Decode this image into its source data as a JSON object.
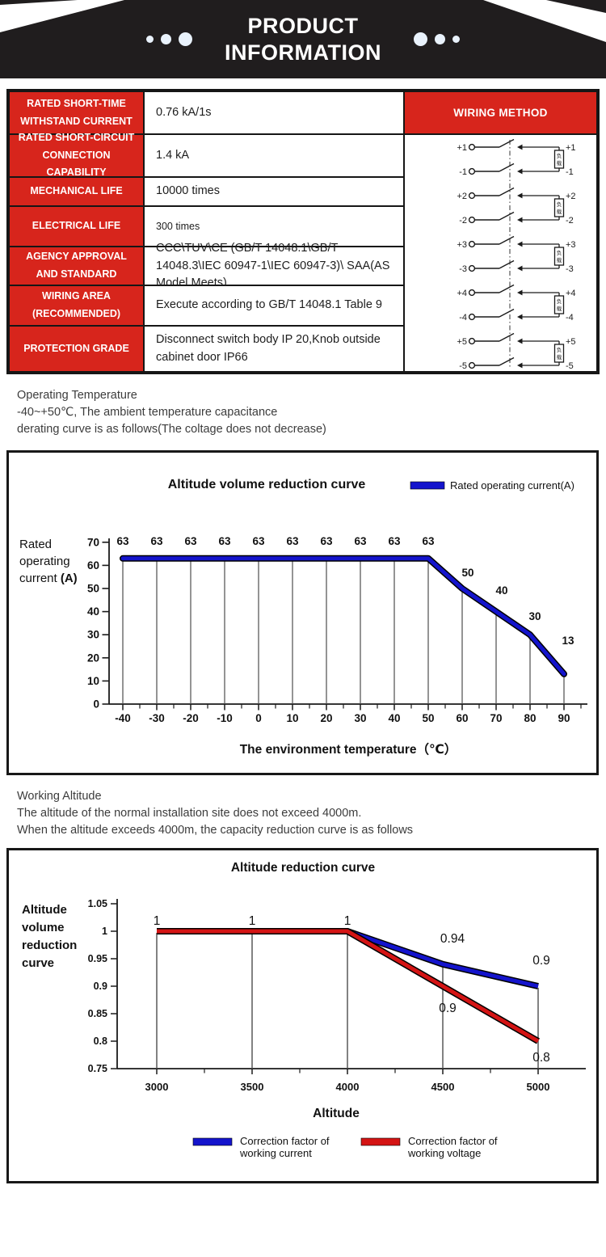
{
  "header": {
    "title": "PRODUCT INFORMATION",
    "title_lines": [
      "PRODUCT",
      "INFORMATION"
    ]
  },
  "spec_table": {
    "rows": [
      {
        "label_lines": [
          "RATED SHORT-TIME",
          "WITHSTAND CURRENT"
        ],
        "value": "0.76 kA/1s"
      },
      {
        "label_lines": [
          "RATED SHORT-CIRCUIT",
          "CONNECTION CAPABILITY"
        ],
        "value": "1.4 kA"
      },
      {
        "label_lines": [
          "MECHANICAL LIFE"
        ],
        "value": "10000 times"
      },
      {
        "label_lines": [
          "ELECTRICAL LIFE"
        ],
        "value": "300 times"
      },
      {
        "label_lines": [
          "AGENCY APPROVAL",
          "AND STANDARD"
        ],
        "value": "CCC\\TUV\\CE (GB/T 14048.1\\GB/T 14048.3\\IEC 60947-1\\IEC 60947-3)\\ SAA(AS Model Meets)"
      },
      {
        "label_lines": [
          "WIRING AREA",
          "(RECOMMENDED)"
        ],
        "value": "Execute according to GB/T 14048.1 Table 9"
      },
      {
        "label_lines": [
          "PROTECTION GRADE"
        ],
        "value": "Disconnect switch body IP 20,Knob outside cabinet door IP66"
      }
    ],
    "wiring": {
      "header": "WIRING METHOD",
      "groups": [
        {
          "plus": "+1",
          "minus": "-1"
        },
        {
          "plus": "+2",
          "minus": "-2"
        },
        {
          "plus": "+3",
          "minus": "-3"
        },
        {
          "plus": "+4",
          "minus": "-4"
        },
        {
          "plus": "+5",
          "minus": "-5"
        }
      ],
      "load_label": "负载"
    }
  },
  "temperature_note": {
    "lines": [
      "Operating Temperature",
      " -40~+50℃, The ambient temperature capacitance",
      "derating curve is as follows(The coltage does not decrease)"
    ]
  },
  "altitude_note": {
    "lines": [
      "Working Altitude",
      "The altitude of the normal installation site does not exceed 4000m.",
      "When the altitude exceeds 4000m, the capacity reduction curve is as follows"
    ]
  },
  "colors": {
    "accent_red": "#d7251c",
    "line_blue": "#1414cc",
    "line_red": "#d41414",
    "banner_black": "#201d1e"
  },
  "chart_data": [
    {
      "type": "line",
      "title": "Altitude volume reduction curve",
      "xlabel": "The environment temperature（℃）",
      "ylabel": "Rated operating current (A)",
      "ylabel_lines": [
        "Rated",
        "operating",
        "current (A)"
      ],
      "legend": [
        {
          "label": "Rated operating current(A)",
          "color": "#1414cc"
        }
      ],
      "legend_position": "top-right",
      "x": [
        -40,
        -30,
        -20,
        -10,
        0,
        10,
        20,
        30,
        40,
        50,
        60,
        70,
        80,
        90
      ],
      "series": [
        {
          "name": "Rated operating current(A)",
          "color": "#1414cc",
          "values": [
            63,
            63,
            63,
            63,
            63,
            63,
            63,
            63,
            63,
            63,
            50,
            40,
            30,
            13
          ],
          "point_labels": [
            "63",
            "63",
            "63",
            "63",
            "63",
            "63",
            "63",
            "63",
            "63",
            "63",
            "50",
            "40",
            "30",
            "13"
          ]
        }
      ],
      "yticks": [
        0,
        10,
        20,
        30,
        40,
        50,
        60,
        70
      ],
      "ylim": [
        0,
        70
      ],
      "grid": "vertical-droplines"
    },
    {
      "type": "line",
      "title": "Altitude reduction curve",
      "xlabel": "Altitude",
      "ylabel": "Altitude volume reduction curve",
      "ylabel_lines": [
        "Altitude",
        "volume",
        "reduction",
        "curve"
      ],
      "legend_position": "bottom",
      "x": [
        3000,
        3500,
        4000,
        4500,
        5000
      ],
      "series": [
        {
          "name": "Correction factor of working current",
          "name_lines": [
            "Correction factor of",
            "working current"
          ],
          "color": "#1414cc",
          "values": [
            1,
            1,
            1,
            0.94,
            0.9
          ],
          "point_labels": [
            "1",
            "1",
            "1",
            "0.94",
            "0.9"
          ]
        },
        {
          "name": "Correction factor of working voltage",
          "name_lines": [
            "Correction factor of",
            "working voltage"
          ],
          "color": "#d41414",
          "values": [
            1,
            1,
            1,
            0.9,
            0.8
          ],
          "point_labels": [
            "",
            "",
            "",
            "0.9",
            "0.8"
          ]
        }
      ],
      "yticks": [
        0.75,
        0.8,
        0.85,
        0.9,
        0.95,
        1,
        1.05
      ],
      "ytick_labels": [
        "0.75",
        "0.8",
        "0.85",
        "0.9",
        "0.95",
        "1",
        "1.05"
      ],
      "ylim": [
        0.75,
        1.05
      ],
      "grid": "vertical-droplines"
    }
  ]
}
